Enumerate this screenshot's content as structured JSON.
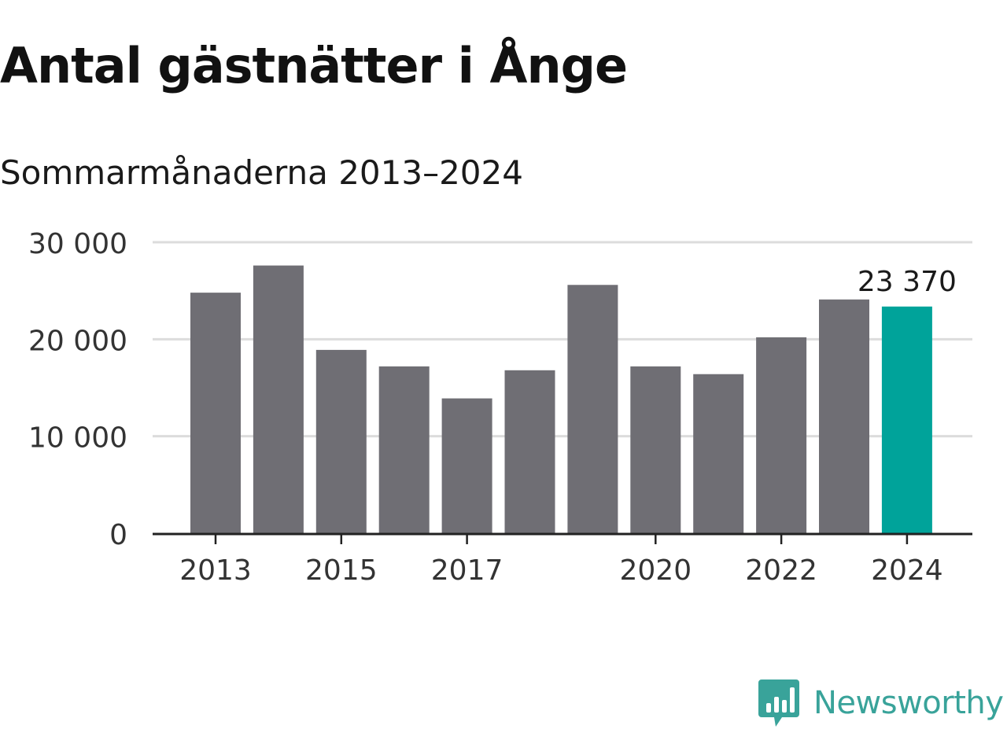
{
  "header": {
    "title": "Antal gästnätter i Ånge",
    "subtitle": "Sommarmånaderna 2013–2024"
  },
  "brand": {
    "name": "Newsworthy",
    "icon": "newsworthy-logo-icon",
    "color": "#39a39a"
  },
  "colors": {
    "bar": "#6f6e74",
    "highlight": "#00a39a",
    "grid": "#dcdcdc",
    "axis": "#222222"
  },
  "chart_data": {
    "type": "bar",
    "title": "Antal gästnätter i Ånge",
    "subtitle": "Sommarmånaderna 2013–2024",
    "xlabel": "",
    "ylabel": "",
    "categories": [
      2013,
      2014,
      2015,
      2016,
      2017,
      2018,
      2019,
      2020,
      2021,
      2022,
      2023,
      2024
    ],
    "values": [
      24800,
      27600,
      18900,
      17200,
      13900,
      16800,
      25600,
      17200,
      16400,
      20200,
      24100,
      23370
    ],
    "highlight_index": 11,
    "annotation": {
      "category": 2024,
      "label": "23 370"
    },
    "ylim": [
      0,
      30000
    ],
    "yticks": [
      0,
      10000,
      20000,
      30000
    ],
    "ytick_labels": [
      "0",
      "10 000",
      "20 000",
      "30 000"
    ],
    "xtick_labels": [
      "2013",
      "2015",
      "2017",
      "2020",
      "2022",
      "2024"
    ],
    "grid": true,
    "legend": "none"
  }
}
